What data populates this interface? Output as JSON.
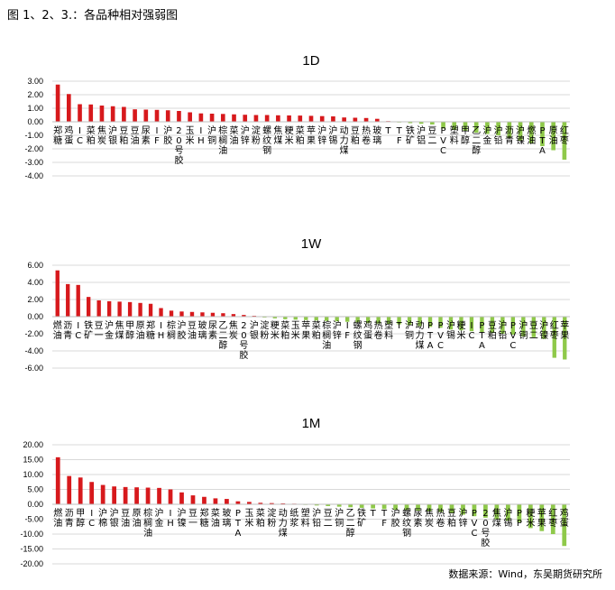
{
  "page": {
    "title": "图 1、2、3.：各品种相对强弱图",
    "source": "数据来源：Wind，东吴期货研究所"
  },
  "colors": {
    "up": "#d7191c",
    "down": "#8fc94a",
    "grid": "#d9d9d9"
  },
  "chart_data": [
    {
      "type": "bar",
      "title": "1D",
      "ylim": [
        -4,
        3
      ],
      "yticks": [
        "3.00",
        "2.00",
        "1.00",
        "0.00",
        "-1.00",
        "-2.00",
        "-3.00",
        "-4.00"
      ],
      "categories": [
        "郑糖",
        "鸡蛋",
        "IC",
        "菜粕",
        "焦炭",
        "沪银",
        "豆粕",
        "豆油",
        "尿素",
        "IF",
        "沪胶",
        "20号胶",
        "玉米",
        "IH",
        "沪铜",
        "棕榈油",
        "菜油",
        "沪锌",
        "淀粉",
        "螺纹钢",
        "焦煤",
        "粳米",
        "菜粕",
        "苹果",
        "沪锌",
        "沪锡",
        "动力煤",
        "豆粕",
        "热卷",
        "玻璃",
        "T",
        "TF",
        "铁矿",
        "沪铝",
        "豆二",
        "PVC",
        "塑料",
        "甲醇",
        "乙二醇",
        "沪金",
        "沪铅",
        "沥青",
        "沪镍",
        "燃油",
        "PTA",
        "原油",
        "红枣"
      ],
      "values": [
        2.75,
        2.05,
        1.3,
        1.28,
        1.2,
        1.15,
        1.1,
        0.92,
        0.9,
        0.88,
        0.85,
        0.8,
        0.7,
        0.62,
        0.6,
        0.58,
        0.55,
        0.52,
        0.5,
        0.5,
        0.48,
        0.47,
        0.46,
        0.44,
        0.42,
        0.4,
        0.32,
        0.3,
        0.28,
        0.22,
        0.05,
        -0.05,
        -0.1,
        -0.15,
        -0.2,
        -0.5,
        -0.6,
        -0.7,
        -0.8,
        -0.9,
        -1.0,
        -1.2,
        -1.4,
        -1.6,
        -1.8,
        -2.1,
        -2.8
      ]
    },
    {
      "type": "bar",
      "title": "1W",
      "ylim": [
        -6,
        6
      ],
      "yticks": [
        "6.00",
        "4.00",
        "2.00",
        "0.00",
        "-2.00",
        "-4.00",
        "-6.00"
      ],
      "categories": [
        "燃油",
        "沥青",
        "IC",
        "铁矿",
        "豆一",
        "沪金",
        "焦煤",
        "甲醇",
        "原油",
        "郑糖",
        "IH",
        "棕榈",
        "沪胶",
        "豆油",
        "玻璃",
        "尿素",
        "乙二醇",
        "焦炭",
        "20号胶",
        "沪银",
        "淀粉",
        "粳米",
        "菜粕",
        "玉米",
        "苹果",
        "菜粕",
        "棕榈油",
        "沪锌",
        "IF",
        "螺纹钢",
        "鸡蛋",
        "热卷",
        "塑料",
        "T",
        "沪铜",
        "动力煤",
        "PTA",
        "PVC",
        "沪锡",
        "粳米",
        "IC",
        "PTA",
        "豆粕",
        "沪铅",
        "PVC",
        "沪铜",
        "豆二",
        "沪镍",
        "红枣",
        "苹果"
      ],
      "values": [
        5.4,
        3.8,
        3.7,
        2.3,
        1.9,
        1.8,
        1.75,
        1.7,
        1.6,
        1.5,
        1.0,
        0.7,
        0.6,
        0.55,
        0.5,
        0.45,
        0.4,
        0.3,
        0.2,
        0.1,
        -0.1,
        -0.2,
        -0.3,
        -0.35,
        -0.4,
        -0.45,
        -0.5,
        -0.55,
        -0.6,
        -0.7,
        -0.75,
        -0.8,
        -0.85,
        -0.9,
        -1.0,
        -1.1,
        -1.2,
        -1.3,
        -1.5,
        -1.6,
        -1.7,
        -1.8,
        -1.9,
        -2.0,
        -2.1,
        -2.3,
        -2.4,
        -2.6,
        -4.8,
        -5.0
      ]
    },
    {
      "type": "bar",
      "title": "1M",
      "ylim": [
        -20,
        20
      ],
      "yticks": [
        "20.00",
        "15.00",
        "10.00",
        "5.00",
        "0.00",
        "-5.00",
        "-10.00",
        "-15.00",
        "-20.00"
      ],
      "categories": [
        "燃油",
        "沥青",
        "甲醇",
        "IC",
        "沪棉",
        "沪银",
        "豆油",
        "原油",
        "棕榈油",
        "沪金",
        "IH",
        "沪镍",
        "豆一",
        "郑糖",
        "菜油",
        "玻璃",
        "PTA",
        "玉米",
        "菜粕",
        "淀粉",
        "动力煤",
        "纸浆",
        "塑料",
        "沪铅",
        "豆二",
        "沪铜",
        "乙二醇",
        "铁矿",
        "T",
        "TF",
        "沪胶",
        "螺纹钢",
        "尿素",
        "焦炭",
        "热卷",
        "豆粕",
        "沪锌",
        "PVC",
        "20号胶",
        "焦煤",
        "沪锡",
        "PP",
        "粳米",
        "苹果",
        "红枣",
        "鸡蛋"
      ],
      "values": [
        15.8,
        9.5,
        9.0,
        7.5,
        6.5,
        6.0,
        5.8,
        5.7,
        5.6,
        5.5,
        5.0,
        4.0,
        3.0,
        2.5,
        2.0,
        1.8,
        1.0,
        0.8,
        0.5,
        0.4,
        0.3,
        0.2,
        -0.2,
        -0.4,
        -0.6,
        -0.8,
        -1.0,
        -1.2,
        -1.4,
        -1.6,
        -1.8,
        -2.0,
        -2.2,
        -2.4,
        -2.6,
        -3.0,
        -3.5,
        -4.0,
        -4.5,
        -5.0,
        -5.5,
        -6.0,
        -8.0,
        -9.0,
        -10.0,
        -14.0
      ]
    }
  ]
}
